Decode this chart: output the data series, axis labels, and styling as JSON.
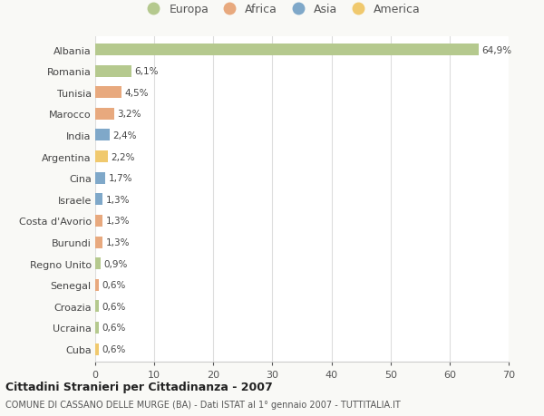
{
  "countries": [
    "Albania",
    "Romania",
    "Tunisia",
    "Marocco",
    "India",
    "Argentina",
    "Cina",
    "Israele",
    "Costa d'Avorio",
    "Burundi",
    "Regno Unito",
    "Senegal",
    "Croazia",
    "Ucraina",
    "Cuba"
  ],
  "values": [
    64.9,
    6.1,
    4.5,
    3.2,
    2.4,
    2.2,
    1.7,
    1.3,
    1.3,
    1.3,
    0.9,
    0.6,
    0.6,
    0.6,
    0.6
  ],
  "labels": [
    "64,9%",
    "6,1%",
    "4,5%",
    "3,2%",
    "2,4%",
    "2,2%",
    "1,7%",
    "1,3%",
    "1,3%",
    "1,3%",
    "0,9%",
    "0,6%",
    "0,6%",
    "0,6%",
    "0,6%"
  ],
  "colors": [
    "#b5c98e",
    "#b5c98e",
    "#e8a97e",
    "#e8a97e",
    "#7fa8c9",
    "#f0c96e",
    "#7fa8c9",
    "#7fa8c9",
    "#e8a97e",
    "#e8a97e",
    "#b5c98e",
    "#e8a97e",
    "#b5c98e",
    "#b5c98e",
    "#f0c96e"
  ],
  "legend_labels": [
    "Europa",
    "Africa",
    "Asia",
    "America"
  ],
  "legend_colors": [
    "#b5c98e",
    "#e8a97e",
    "#7fa8c9",
    "#f0c96e"
  ],
  "title": "Cittadini Stranieri per Cittadinanza - 2007",
  "subtitle": "COMUNE DI CASSANO DELLE MURGE (BA) - Dati ISTAT al 1° gennaio 2007 - TUTTITALIA.IT",
  "xlim": [
    0,
    70
  ],
  "xticks": [
    0,
    10,
    20,
    30,
    40,
    50,
    60,
    70
  ],
  "background_color": "#f9f9f6",
  "plot_background": "#ffffff",
  "bar_height": 0.55
}
